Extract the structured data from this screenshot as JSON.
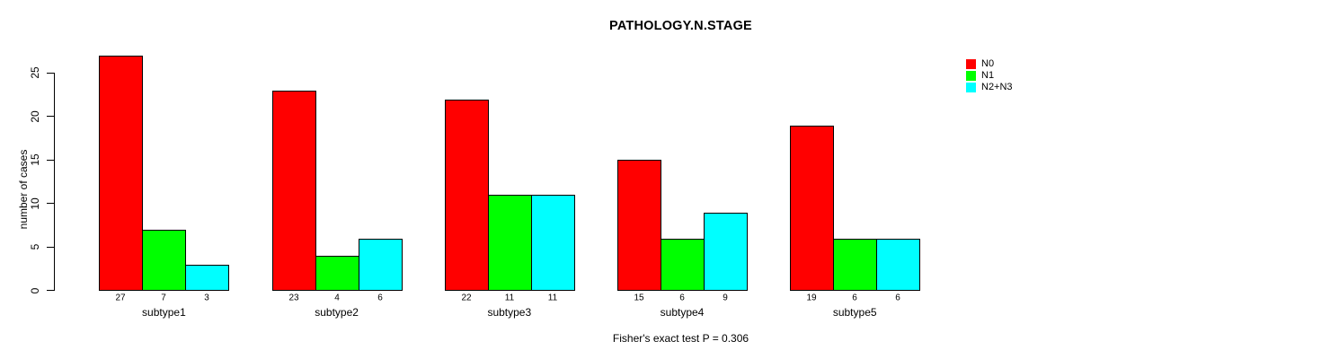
{
  "chart_data": {
    "type": "bar",
    "title": "PATHOLOGY.N.STAGE",
    "xlabel": "",
    "ylabel": "number of cases",
    "ylim": [
      0,
      27
    ],
    "yticks": [
      0,
      5,
      10,
      15,
      20,
      25
    ],
    "grid": false,
    "background_color": "#ffffff",
    "bar_border_color": "#000000",
    "categories": [
      "subtype1",
      "subtype2",
      "subtype3",
      "subtype4",
      "subtype5"
    ],
    "series": [
      {
        "name": "N0",
        "color": "#ff0000",
        "values": [
          27,
          23,
          22,
          15,
          19
        ]
      },
      {
        "name": "N1",
        "color": "#00ff00",
        "values": [
          7,
          4,
          11,
          6,
          6
        ]
      },
      {
        "name": "N2+N3",
        "color": "#00ffff",
        "values": [
          3,
          6,
          11,
          9,
          6
        ]
      }
    ],
    "bar_value_labels_shown": true,
    "legend": {
      "position": "top-right",
      "entries": [
        {
          "label": "N0",
          "color": "#ff0000"
        },
        {
          "label": "N1",
          "color": "#00ff00"
        },
        {
          "label": "N2+N3",
          "color": "#00ffff"
        }
      ]
    },
    "annotation": "Fisher's exact test P = 0.306"
  }
}
